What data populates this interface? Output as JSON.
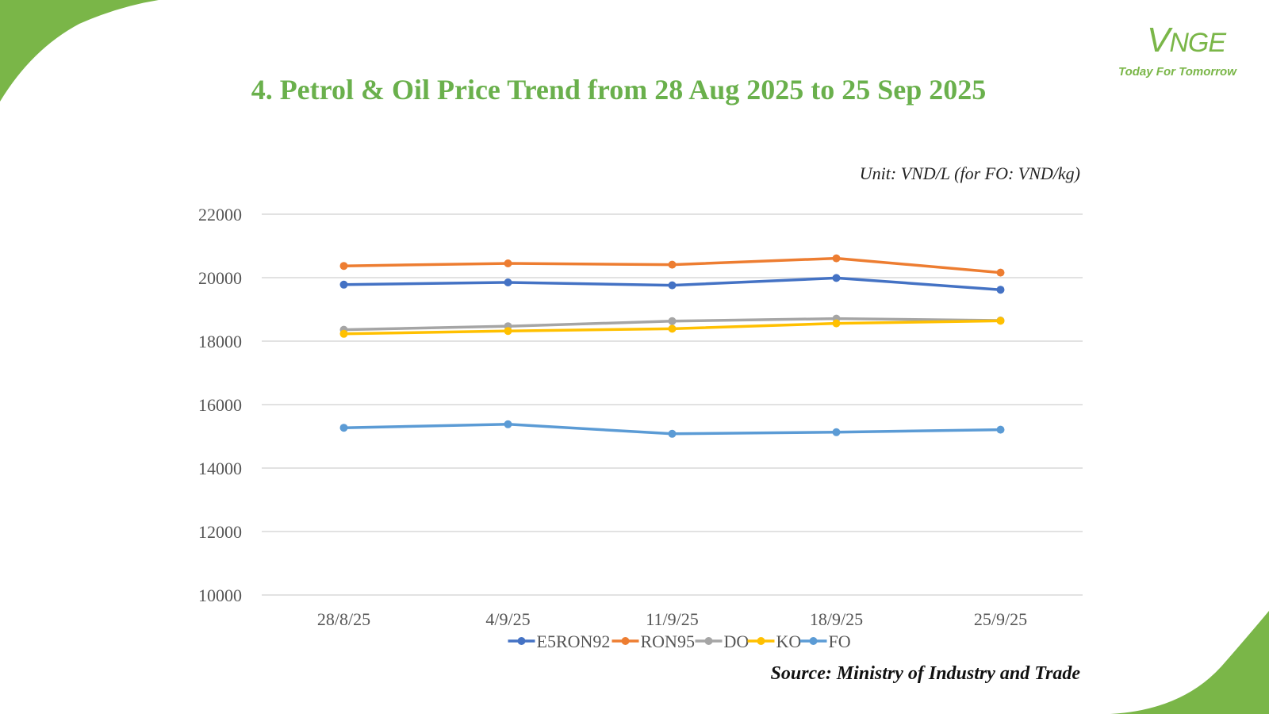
{
  "header": {
    "title": "4. Petrol & Oil Price Trend from 28 Aug 2025 to 25 Sep 2025",
    "unit": "Unit: VND/L (for FO: VND/kg)",
    "source": "Source: Ministry of Industry and Trade"
  },
  "logo": {
    "mark": "VNGE",
    "tagline": "Today For Tomorrow"
  },
  "colors": {
    "brand_green": "#6ab04c",
    "grid": "#d9d9d9"
  },
  "chart_data": {
    "type": "line",
    "title": "4. Petrol & Oil Price Trend from 28 Aug 2025 to 25 Sep 2025",
    "xlabel": "",
    "ylabel": "",
    "categories": [
      "28/8/25",
      "4/9/25",
      "11/9/25",
      "18/9/25",
      "25/9/25"
    ],
    "ylim": [
      10000,
      22000
    ],
    "yticks": [
      10000,
      12000,
      14000,
      16000,
      18000,
      20000,
      22000
    ],
    "grid": true,
    "legend_position": "bottom",
    "series": [
      {
        "name": "E5RON92",
        "color": "#4472c4",
        "values": [
          19780,
          19850,
          19760,
          19990,
          19620
        ]
      },
      {
        "name": "RON95",
        "color": "#ed7d31",
        "values": [
          20370,
          20450,
          20410,
          20610,
          20160
        ]
      },
      {
        "name": "DO",
        "color": "#a5a5a5",
        "values": [
          18360,
          18470,
          18630,
          18710,
          18650
        ]
      },
      {
        "name": "KO",
        "color": "#ffc000",
        "values": [
          18230,
          18320,
          18390,
          18560,
          18640
        ]
      },
      {
        "name": "FO",
        "color": "#5b9bd5",
        "values": [
          15270,
          15380,
          15080,
          15130,
          15210
        ]
      }
    ]
  }
}
